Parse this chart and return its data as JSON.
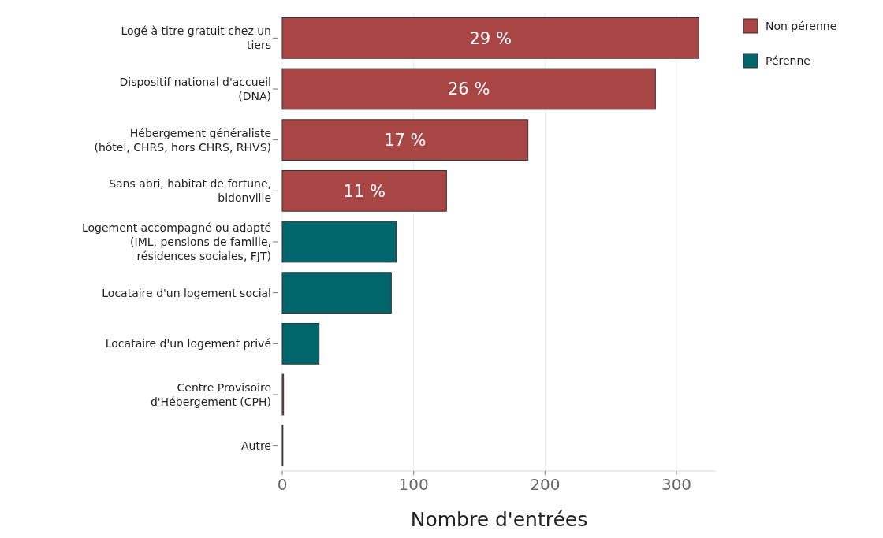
{
  "chart_data": {
    "type": "bar",
    "orientation": "horizontal",
    "xlabel": "Nombre d'entrées",
    "categories": [
      "Logé à titre gratuit chez un tiers",
      "Dispositif national d'accueil (DNA)",
      "Hébergement généraliste (hôtel, CHRS, hors CHRS, RHVS)",
      "Sans abri, habitat de fortune, bidonville",
      "Logement accompagné ou adapté (IML, pensions de famille, résidences sociales, FJT)",
      "Locataire d'un logement social",
      "Locataire d'un logement privé",
      "Centre Provisoire d'Hébergement (CPH)",
      "Autre"
    ],
    "series": [
      {
        "name": "Non pérenne",
        "color": "#a84545",
        "values": [
          317,
          284,
          187,
          125,
          null,
          null,
          null,
          1,
          0.5
        ]
      },
      {
        "name": "Pérenne",
        "color": "#00666b",
        "values": [
          null,
          null,
          null,
          null,
          87,
          83,
          28,
          null,
          null
        ]
      }
    ],
    "annotations": [
      {
        "text": "29 %",
        "x": 158.5,
        "y": "Logé à titre gratuit chez un tiers"
      },
      {
        "text": "26 %",
        "x": 142,
        "y": "Dispositif national d'accueil (DNA)"
      },
      {
        "text": "17 %",
        "x": 93.5,
        "y": "Hébergement généraliste (hôtel, CHRS, hors CHRS, RHVS)"
      },
      {
        "text": "11 %",
        "x": 62.5,
        "y": "Sans abri, habitat de fortune, bidonville"
      }
    ],
    "xlim": [
      0,
      330
    ],
    "xticks": [
      0,
      100,
      200,
      300
    ],
    "grid": "x",
    "legend": "top right"
  }
}
